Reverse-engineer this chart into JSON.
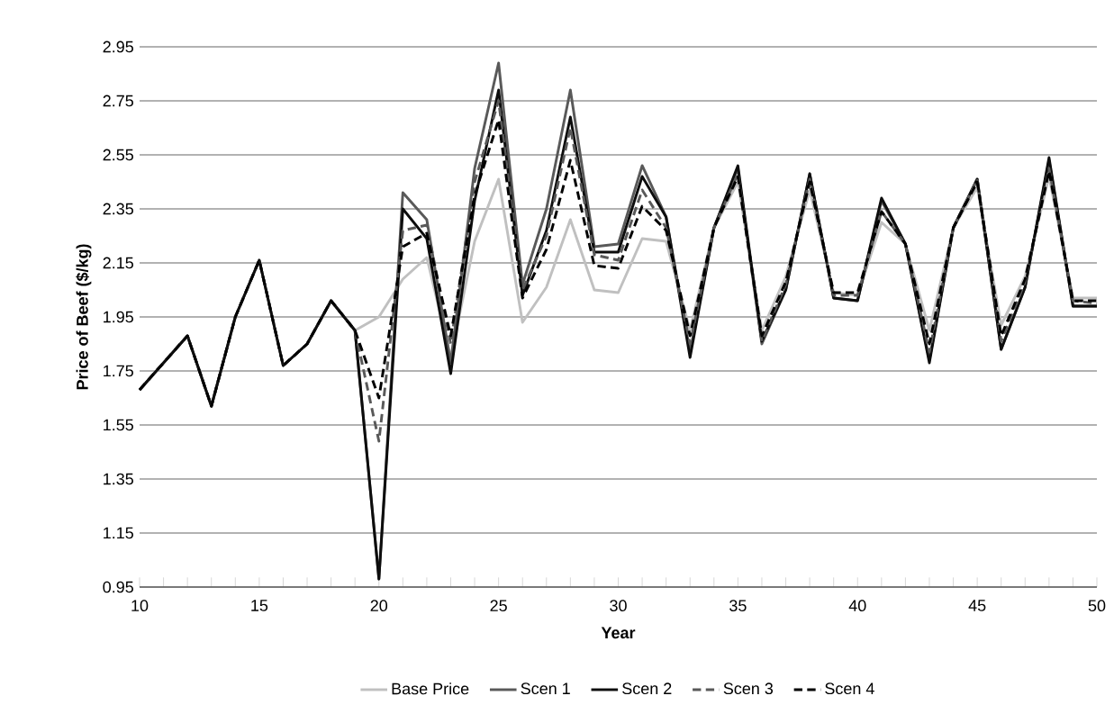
{
  "chart_data": {
    "type": "line",
    "xlabel": "Year",
    "ylabel": "Price of Beef ($/kg)",
    "x": [
      10,
      11,
      12,
      13,
      14,
      15,
      16,
      17,
      18,
      19,
      20,
      21,
      22,
      23,
      24,
      25,
      26,
      27,
      28,
      29,
      30,
      31,
      32,
      33,
      34,
      35,
      36,
      37,
      38,
      39,
      40,
      41,
      42,
      43,
      44,
      45,
      46,
      47,
      48,
      49,
      50
    ],
    "series": [
      {
        "name": "Base Price",
        "color": "#c0c0c0",
        "line_style": "solid",
        "values": [
          1.68,
          1.78,
          1.88,
          1.62,
          1.95,
          2.16,
          1.77,
          1.85,
          2.01,
          1.9,
          1.95,
          2.09,
          2.17,
          1.8,
          2.23,
          2.46,
          1.93,
          2.06,
          2.31,
          2.05,
          2.04,
          2.24,
          2.23,
          1.9,
          2.28,
          2.45,
          1.9,
          2.1,
          2.42,
          2.04,
          2.03,
          2.3,
          2.22,
          1.9,
          2.28,
          2.43,
          1.92,
          2.1,
          2.47,
          2.02,
          2.02
        ]
      },
      {
        "name": "Scen 1",
        "color": "#595959",
        "line_style": "solid",
        "values": [
          1.68,
          1.78,
          1.88,
          1.62,
          1.95,
          2.16,
          1.77,
          1.85,
          2.01,
          1.9,
          0.98,
          2.41,
          2.31,
          1.78,
          2.5,
          2.89,
          2.07,
          2.35,
          2.79,
          2.21,
          2.22,
          2.51,
          2.32,
          1.82,
          2.28,
          2.5,
          1.85,
          2.05,
          2.48,
          2.02,
          2.01,
          2.38,
          2.22,
          1.79,
          2.28,
          2.46,
          1.83,
          2.06,
          2.53,
          1.99,
          1.99
        ]
      },
      {
        "name": "Scen 2",
        "color": "#0d0d0d",
        "line_style": "solid",
        "values": [
          1.68,
          1.78,
          1.88,
          1.62,
          1.95,
          2.16,
          1.77,
          1.85,
          2.01,
          1.9,
          0.98,
          2.35,
          2.24,
          1.74,
          2.38,
          2.79,
          2.03,
          2.27,
          2.69,
          2.19,
          2.19,
          2.47,
          2.32,
          1.8,
          2.28,
          2.51,
          1.86,
          2.05,
          2.48,
          2.02,
          2.01,
          2.39,
          2.22,
          1.78,
          2.28,
          2.46,
          1.83,
          2.06,
          2.54,
          1.99,
          1.99
        ]
      },
      {
        "name": "Scen 3",
        "color": "#595959",
        "line_style": "dashed",
        "values": [
          1.68,
          1.78,
          1.88,
          1.62,
          1.95,
          2.16,
          1.77,
          1.85,
          2.01,
          1.9,
          1.49,
          2.27,
          2.29,
          1.85,
          2.45,
          2.75,
          2.05,
          2.25,
          2.65,
          2.18,
          2.16,
          2.42,
          2.28,
          1.85,
          2.28,
          2.48,
          1.86,
          2.07,
          2.46,
          2.03,
          2.03,
          2.34,
          2.22,
          1.82,
          2.28,
          2.46,
          1.86,
          2.08,
          2.5,
          2.01,
          2.0
        ]
      },
      {
        "name": "Scen 4",
        "color": "#000000",
        "line_style": "dashed",
        "values": [
          1.68,
          1.78,
          1.88,
          1.62,
          1.95,
          2.16,
          1.77,
          1.85,
          2.01,
          1.9,
          1.65,
          2.21,
          2.26,
          1.88,
          2.4,
          2.68,
          2.02,
          2.2,
          2.53,
          2.14,
          2.13,
          2.36,
          2.27,
          1.88,
          2.28,
          2.47,
          1.88,
          2.08,
          2.45,
          2.04,
          2.04,
          2.34,
          2.22,
          1.85,
          2.28,
          2.45,
          1.88,
          2.09,
          2.49,
          2.01,
          2.01
        ]
      }
    ],
    "xlim": [
      10,
      50
    ],
    "xticks": [
      10,
      15,
      20,
      25,
      30,
      35,
      40,
      45,
      50
    ],
    "ylim": [
      0.95,
      2.95
    ],
    "yticks": [
      0.95,
      1.15,
      1.35,
      1.55,
      1.75,
      1.95,
      2.15,
      2.35,
      2.55,
      2.75,
      2.95
    ],
    "grid": "y",
    "legend": "bottom",
    "marker": "none"
  }
}
